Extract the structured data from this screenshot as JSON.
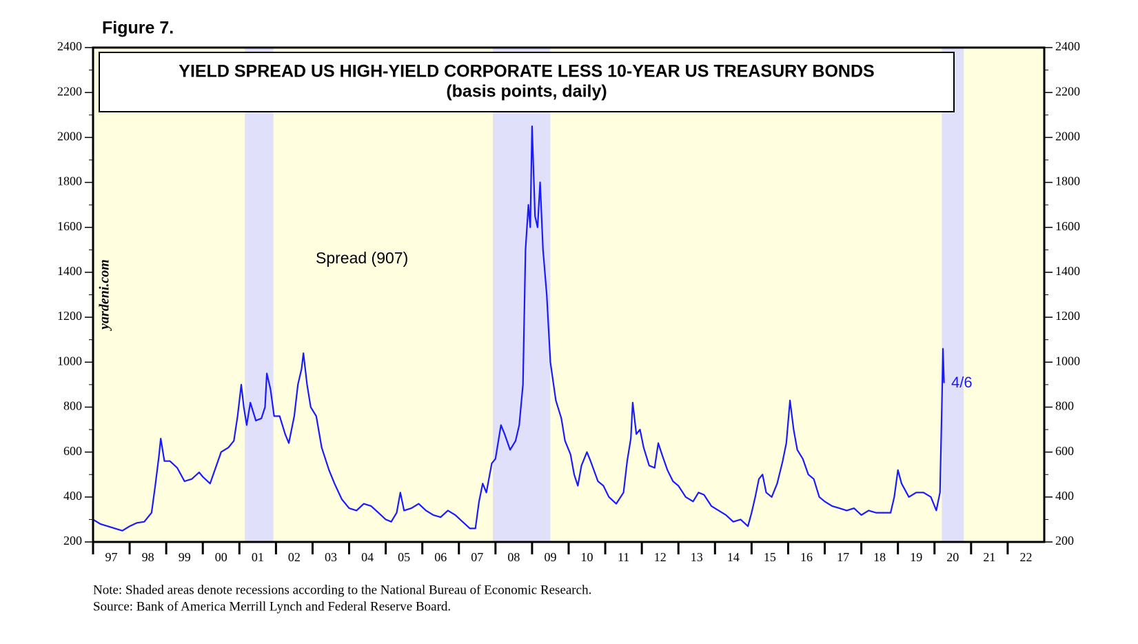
{
  "chart_data": {
    "type": "line",
    "figure_label": "Figure 7.",
    "title": "YIELD SPREAD US HIGH-YIELD CORPORATE LESS 10-YEAR US TREASURY BONDS",
    "subtitle": "(basis points, daily)",
    "watermark": "yardeni.com",
    "annotations": [
      "Spread (907)",
      "4/6"
    ],
    "notes": [
      "Note: Shaded areas denote recessions according to the National Bureau of Economic Research.",
      "Source: Bank of America Merrill Lynch and Federal Reserve Board."
    ],
    "recessions": [
      [
        2001.15,
        2001.93
      ],
      [
        2007.93,
        2009.5
      ],
      [
        2020.2,
        2020.8
      ]
    ],
    "background_color": "#ffffe0",
    "recession_color": "#e0e0fa",
    "xlim": [
      1997,
      2023
    ],
    "xticks": [
      {
        "value": 1997,
        "label": "97"
      },
      {
        "value": 1998,
        "label": "98"
      },
      {
        "value": 1999,
        "label": "99"
      },
      {
        "value": 2000,
        "label": "00"
      },
      {
        "value": 2001,
        "label": "01"
      },
      {
        "value": 2002,
        "label": "02"
      },
      {
        "value": 2003,
        "label": "03"
      },
      {
        "value": 2004,
        "label": "04"
      },
      {
        "value": 2005,
        "label": "05"
      },
      {
        "value": 2006,
        "label": "06"
      },
      {
        "value": 2007,
        "label": "07"
      },
      {
        "value": 2008,
        "label": "08"
      },
      {
        "value": 2009,
        "label": "09"
      },
      {
        "value": 2010,
        "label": "10"
      },
      {
        "value": 2011,
        "label": "11"
      },
      {
        "value": 2012,
        "label": "12"
      },
      {
        "value": 2013,
        "label": "13"
      },
      {
        "value": 2014,
        "label": "14"
      },
      {
        "value": 2015,
        "label": "15"
      },
      {
        "value": 2016,
        "label": "16"
      },
      {
        "value": 2017,
        "label": "17"
      },
      {
        "value": 2018,
        "label": "18"
      },
      {
        "value": 2019,
        "label": "19"
      },
      {
        "value": 2020,
        "label": "20"
      },
      {
        "value": 2021,
        "label": "21"
      },
      {
        "value": 2022,
        "label": "22"
      }
    ],
    "ylim": [
      200,
      2400
    ],
    "yticks": [
      200,
      400,
      600,
      800,
      1000,
      1200,
      1400,
      1600,
      1800,
      2000,
      2200,
      2400
    ],
    "y2lim": [
      200,
      2400
    ],
    "y2ticks": [
      200,
      400,
      600,
      800,
      1000,
      1200,
      1400,
      1600,
      1800,
      2000,
      2200,
      2400
    ],
    "x": [
      1997.0,
      1997.2,
      1997.4,
      1997.6,
      1997.8,
      1998.0,
      1998.2,
      1998.4,
      1998.6,
      1998.7,
      1998.8,
      1998.85,
      1998.95,
      1999.1,
      1999.3,
      1999.5,
      1999.7,
      1999.9,
      2000.0,
      2000.2,
      2000.35,
      2000.5,
      2000.7,
      2000.85,
      2000.95,
      2001.05,
      2001.12,
      2001.2,
      2001.3,
      2001.45,
      2001.6,
      2001.7,
      2001.75,
      2001.85,
      2001.95,
      2002.1,
      2002.25,
      2002.35,
      2002.5,
      2002.6,
      2002.7,
      2002.75,
      2002.85,
      2002.95,
      2003.1,
      2003.25,
      2003.45,
      2003.6,
      2003.8,
      2004.0,
      2004.2,
      2004.4,
      2004.6,
      2004.8,
      2005.0,
      2005.15,
      2005.3,
      2005.4,
      2005.5,
      2005.7,
      2005.9,
      2006.1,
      2006.3,
      2006.5,
      2006.7,
      2006.9,
      2007.1,
      2007.3,
      2007.45,
      2007.55,
      2007.65,
      2007.75,
      2007.9,
      2008.0,
      2008.15,
      2008.25,
      2008.4,
      2008.55,
      2008.65,
      2008.75,
      2008.82,
      2008.9,
      2008.95,
      2009.0,
      2009.08,
      2009.15,
      2009.22,
      2009.3,
      2009.4,
      2009.5,
      2009.65,
      2009.8,
      2009.9,
      2010.05,
      2010.15,
      2010.25,
      2010.35,
      2010.5,
      2010.6,
      2010.8,
      2010.95,
      2011.1,
      2011.3,
      2011.5,
      2011.6,
      2011.7,
      2011.75,
      2011.85,
      2011.95,
      2012.05,
      2012.2,
      2012.35,
      2012.45,
      2012.55,
      2012.7,
      2012.85,
      2013.0,
      2013.2,
      2013.4,
      2013.55,
      2013.7,
      2013.9,
      2014.1,
      2014.3,
      2014.5,
      2014.7,
      2014.9,
      2015.0,
      2015.1,
      2015.2,
      2015.3,
      2015.4,
      2015.55,
      2015.7,
      2015.85,
      2015.95,
      2016.05,
      2016.15,
      2016.25,
      2016.4,
      2016.55,
      2016.7,
      2016.85,
      2017.0,
      2017.2,
      2017.4,
      2017.6,
      2017.8,
      2018.0,
      2018.2,
      2018.4,
      2018.6,
      2018.8,
      2018.9,
      2019.0,
      2019.1,
      2019.3,
      2019.5,
      2019.7,
      2019.9,
      2020.05,
      2020.15,
      2020.2,
      2020.23,
      2020.26
    ],
    "series": [
      {
        "color": "#1a1aff",
        "values": [
          300,
          280,
          270,
          260,
          250,
          270,
          285,
          290,
          330,
          450,
          580,
          660,
          560,
          560,
          530,
          470,
          480,
          510,
          490,
          460,
          530,
          600,
          620,
          650,
          760,
          900,
          800,
          720,
          820,
          740,
          750,
          800,
          950,
          880,
          760,
          760,
          680,
          640,
          760,
          900,
          970,
          1040,
          900,
          800,
          760,
          620,
          520,
          460,
          390,
          350,
          340,
          370,
          360,
          330,
          300,
          290,
          330,
          420,
          340,
          350,
          370,
          340,
          320,
          310,
          340,
          320,
          290,
          260,
          260,
          380,
          460,
          420,
          550,
          570,
          720,
          680,
          610,
          650,
          720,
          900,
          1500,
          1700,
          1600,
          2050,
          1650,
          1600,
          1800,
          1500,
          1300,
          1000,
          830,
          750,
          650,
          590,
          500,
          450,
          540,
          600,
          560,
          470,
          450,
          400,
          370,
          420,
          560,
          660,
          820,
          680,
          700,
          620,
          540,
          530,
          640,
          590,
          520,
          470,
          450,
          400,
          380,
          420,
          410,
          360,
          340,
          320,
          290,
          300,
          270,
          330,
          400,
          480,
          500,
          420,
          400,
          460,
          560,
          640,
          830,
          700,
          610,
          570,
          500,
          480,
          400,
          380,
          360,
          350,
          340,
          350,
          320,
          340,
          330,
          330,
          330,
          400,
          520,
          460,
          400,
          420,
          420,
          400,
          340,
          420,
          800,
          1060,
          907
        ]
      }
    ]
  }
}
